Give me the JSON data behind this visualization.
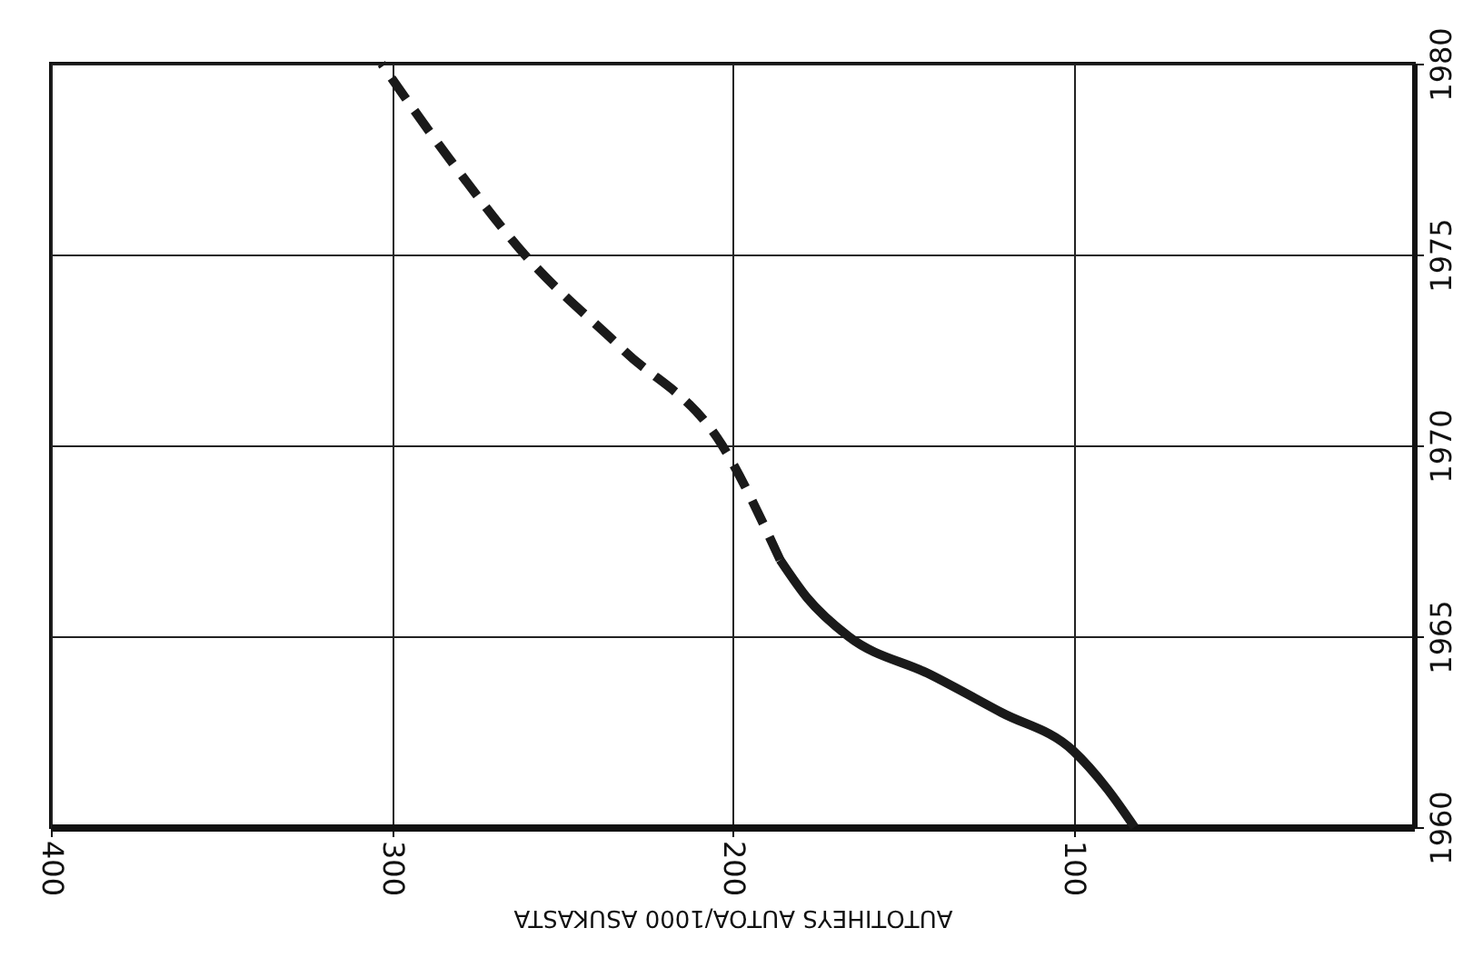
{
  "chart_data": {
    "type": "line",
    "xlabel": "AUTOTIHEYS AUTOA/1000 ASUKASTA",
    "xlim": [
      400,
      0
    ],
    "xticks": [
      400,
      300,
      200,
      100
    ],
    "ylim": [
      1960,
      1980
    ],
    "yticks": [
      1960,
      1965,
      1970,
      1975,
      1980
    ],
    "grid": true,
    "series": [
      {
        "color": "#1a1a1a",
        "line_style": "solid",
        "x": [
          82,
          90,
          100,
          121,
          142,
          166,
          178,
          186
        ],
        "values": [
          1960,
          1961,
          1962,
          1963,
          1964,
          1965,
          1966,
          1967
        ]
      },
      {
        "color": "#1a1a1a",
        "line_style": "dashed",
        "x": [
          186,
          203,
          232,
          261,
          283,
          303
        ],
        "values": [
          1967,
          1970,
          1972.5,
          1975,
          1977.5,
          1980
        ]
      }
    ]
  }
}
